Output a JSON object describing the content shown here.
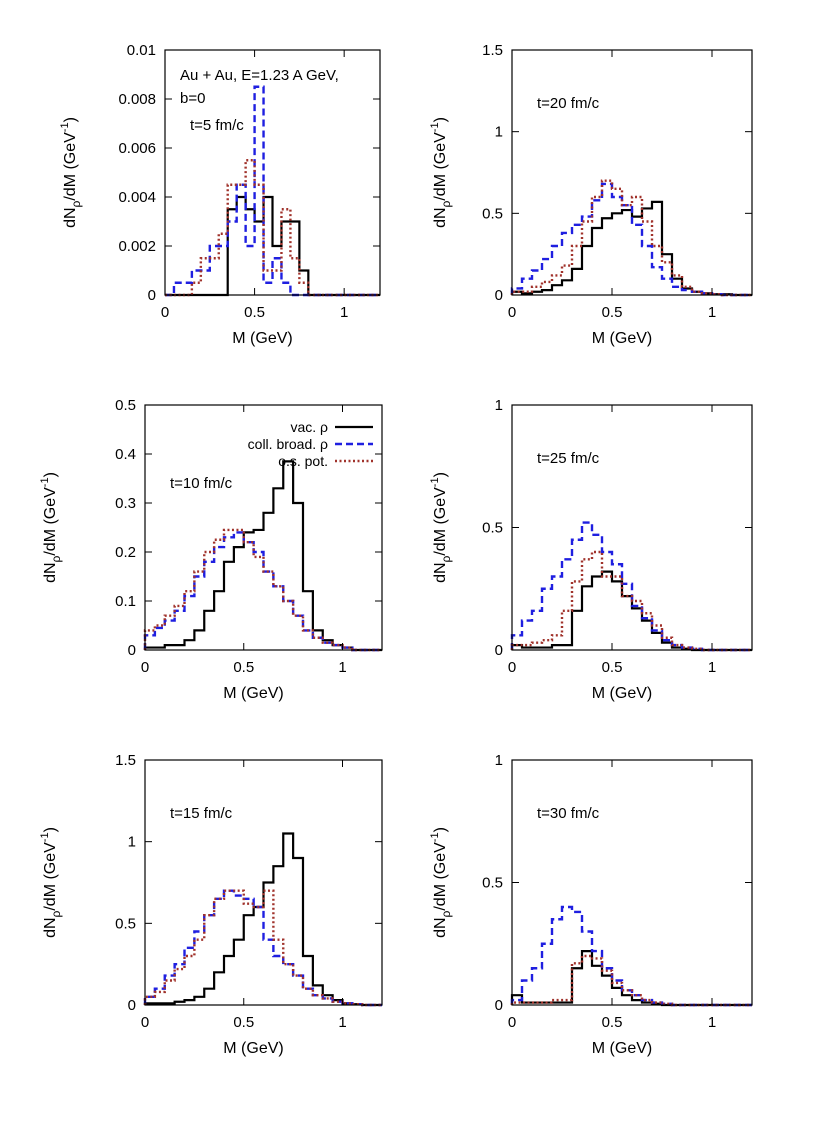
{
  "figure": {
    "header_lines": [
      "Au + Au, E=1.23 A GeV,",
      "b=0"
    ],
    "legend": [
      {
        "label": "vac. ρ",
        "color": "#000000",
        "style": "solid"
      },
      {
        "label": "coll. broad. ρ",
        "color": "#1f1fe0",
        "style": "dashed"
      },
      {
        "label": "o.s. pot.",
        "color": "#a0322b",
        "style": "dotted"
      }
    ]
  },
  "chart_data": [
    {
      "type": "line",
      "annotation": "t=5 fm/c",
      "xlabel": "M (GeV)",
      "ylabel": "dN_ρ/dM (GeV^-1)",
      "xlim": [
        0,
        1.2
      ],
      "ylim": [
        0,
        0.01
      ],
      "xticks": [
        "0",
        "0.5",
        "1"
      ],
      "xtick_values": [
        0,
        0.5,
        1
      ],
      "yticks": [
        "0",
        "0.002",
        "0.004",
        "0.006",
        "0.008",
        "0.01"
      ],
      "ytick_values": [
        0,
        0.002,
        0.004,
        0.006,
        0.008,
        0.01
      ],
      "bin_edges": [
        0,
        0.05,
        0.1,
        0.15,
        0.2,
        0.25,
        0.3,
        0.35,
        0.4,
        0.45,
        0.5,
        0.55,
        0.6,
        0.65,
        0.7,
        0.75,
        0.8,
        0.85,
        0.9,
        0.95,
        1.0,
        1.05,
        1.1,
        1.15,
        1.2
      ],
      "series": [
        {
          "name": "vac. ρ",
          "values": [
            0,
            0,
            0,
            0,
            0,
            0,
            0,
            0.0035,
            0.004,
            0.0035,
            0.003,
            0.004,
            0.002,
            0.003,
            0.003,
            0.001,
            0,
            0,
            0,
            0,
            0,
            0,
            0,
            0
          ]
        },
        {
          "name": "coll. broad. ρ",
          "values": [
            0,
            0.0005,
            0.0005,
            0.001,
            0.001,
            0.002,
            0.002,
            0.003,
            0.0045,
            0.002,
            0.0085,
            0.0005,
            0.0015,
            0.0005,
            0,
            0,
            0,
            0,
            0,
            0,
            0,
            0,
            0,
            0
          ]
        },
        {
          "name": "o.s. pot.",
          "values": [
            0,
            0,
            0,
            0.0005,
            0.0015,
            0.0015,
            0.0025,
            0.0045,
            0.0045,
            0.0055,
            0.0045,
            0.001,
            0.001,
            0.0035,
            0.0015,
            0.0005,
            0,
            0,
            0,
            0,
            0,
            0,
            0,
            0
          ]
        }
      ]
    },
    {
      "type": "line",
      "annotation": "t=20 fm/c",
      "xlabel": "M (GeV)",
      "ylabel": "dN_ρ/dM (GeV^-1)",
      "xlim": [
        0,
        1.2
      ],
      "ylim": [
        0,
        1.5
      ],
      "xticks": [
        "0",
        "0.5",
        "1"
      ],
      "xtick_values": [
        0,
        0.5,
        1
      ],
      "yticks": [
        "0",
        "0.5",
        "1",
        "1.5"
      ],
      "ytick_values": [
        0,
        0.5,
        1,
        1.5
      ],
      "bin_edges": [
        0,
        0.05,
        0.1,
        0.15,
        0.2,
        0.25,
        0.3,
        0.35,
        0.4,
        0.45,
        0.5,
        0.55,
        0.6,
        0.65,
        0.7,
        0.75,
        0.8,
        0.85,
        0.9,
        0.95,
        1.0,
        1.05,
        1.1,
        1.15,
        1.2
      ],
      "series": [
        {
          "name": "vac. ρ",
          "values": [
            0.02,
            0.01,
            0.02,
            0.03,
            0.06,
            0.09,
            0.16,
            0.3,
            0.41,
            0.47,
            0.5,
            0.52,
            0.48,
            0.53,
            0.57,
            0.25,
            0.1,
            0.04,
            0.02,
            0.01,
            0.005,
            0.005,
            0,
            0
          ]
        },
        {
          "name": "coll. broad. ρ",
          "values": [
            0.04,
            0.1,
            0.15,
            0.22,
            0.3,
            0.38,
            0.43,
            0.48,
            0.58,
            0.68,
            0.6,
            0.55,
            0.43,
            0.3,
            0.17,
            0.1,
            0.05,
            0.03,
            0.02,
            0.01,
            0.005,
            0,
            0,
            0
          ]
        },
        {
          "name": "o.s. pot.",
          "values": [
            0.02,
            0.02,
            0.05,
            0.08,
            0.12,
            0.18,
            0.3,
            0.45,
            0.6,
            0.7,
            0.65,
            0.55,
            0.6,
            0.45,
            0.3,
            0.2,
            0.12,
            0.05,
            0.02,
            0.01,
            0.005,
            0,
            0,
            0
          ]
        }
      ]
    },
    {
      "type": "line",
      "annotation": "t=10 fm/c",
      "xlabel": "M (GeV)",
      "ylabel": "dN_ρ/dM (GeV^-1)",
      "xlim": [
        0,
        1.2
      ],
      "ylim": [
        0,
        0.5
      ],
      "xticks": [
        "0",
        "0.5",
        "1"
      ],
      "xtick_values": [
        0,
        0.5,
        1
      ],
      "yticks": [
        "0",
        "0.1",
        "0.2",
        "0.3",
        "0.4",
        "0.5"
      ],
      "ytick_values": [
        0,
        0.1,
        0.2,
        0.3,
        0.4,
        0.5
      ],
      "bin_edges": [
        0,
        0.05,
        0.1,
        0.15,
        0.2,
        0.25,
        0.3,
        0.35,
        0.4,
        0.45,
        0.5,
        0.55,
        0.6,
        0.65,
        0.7,
        0.75,
        0.8,
        0.85,
        0.9,
        0.95,
        1.0,
        1.05,
        1.1,
        1.15,
        1.2
      ],
      "series": [
        {
          "name": "vac. ρ",
          "values": [
            0.005,
            0.005,
            0.01,
            0.01,
            0.02,
            0.04,
            0.08,
            0.12,
            0.18,
            0.21,
            0.24,
            0.245,
            0.28,
            0.33,
            0.385,
            0.3,
            0.12,
            0.04,
            0.02,
            0.01,
            0.005,
            0,
            0,
            0
          ]
        },
        {
          "name": "coll. broad. ρ",
          "values": [
            0.03,
            0.045,
            0.06,
            0.08,
            0.11,
            0.15,
            0.18,
            0.21,
            0.23,
            0.24,
            0.22,
            0.2,
            0.16,
            0.13,
            0.1,
            0.07,
            0.04,
            0.025,
            0.015,
            0.01,
            0.005,
            0,
            0,
            0
          ]
        },
        {
          "name": "o.s. pot.",
          "values": [
            0.04,
            0.05,
            0.07,
            0.09,
            0.12,
            0.16,
            0.2,
            0.225,
            0.245,
            0.245,
            0.22,
            0.19,
            0.16,
            0.13,
            0.1,
            0.07,
            0.04,
            0.025,
            0.015,
            0.01,
            0.005,
            0,
            0,
            0
          ]
        }
      ]
    },
    {
      "type": "line",
      "annotation": "t=25 fm/c",
      "xlabel": "M (GeV)",
      "ylabel": "dN_ρ/dM (GeV^-1)",
      "xlim": [
        0,
        1.2
      ],
      "ylim": [
        0,
        1
      ],
      "xticks": [
        "0",
        "0.5",
        "1"
      ],
      "xtick_values": [
        0,
        0.5,
        1
      ],
      "yticks": [
        "0",
        "0.5",
        "1"
      ],
      "ytick_values": [
        0,
        0.5,
        1
      ],
      "bin_edges": [
        0,
        0.05,
        0.1,
        0.15,
        0.2,
        0.25,
        0.3,
        0.35,
        0.4,
        0.45,
        0.5,
        0.55,
        0.6,
        0.65,
        0.7,
        0.75,
        0.8,
        0.85,
        0.9,
        0.95,
        1.0,
        1.05,
        1.1,
        1.15,
        1.2
      ],
      "series": [
        {
          "name": "vac. ρ",
          "values": [
            0.02,
            0.01,
            0.01,
            0.01,
            0.02,
            0.02,
            0.16,
            0.26,
            0.3,
            0.32,
            0.28,
            0.22,
            0.17,
            0.12,
            0.07,
            0.03,
            0.01,
            0.005,
            0,
            0,
            0,
            0,
            0,
            0
          ]
        },
        {
          "name": "coll. broad. ρ",
          "values": [
            0.06,
            0.12,
            0.16,
            0.25,
            0.3,
            0.37,
            0.45,
            0.52,
            0.47,
            0.4,
            0.35,
            0.27,
            0.18,
            0.13,
            0.08,
            0.04,
            0.02,
            0.01,
            0.005,
            0,
            0,
            0,
            0,
            0
          ]
        },
        {
          "name": "o.s. pot.",
          "values": [
            0.02,
            0.02,
            0.03,
            0.04,
            0.06,
            0.16,
            0.28,
            0.37,
            0.4,
            0.3,
            0.3,
            0.22,
            0.2,
            0.15,
            0.1,
            0.05,
            0.02,
            0.01,
            0.005,
            0,
            0,
            0,
            0,
            0
          ]
        }
      ]
    },
    {
      "type": "line",
      "annotation": "t=15 fm/c",
      "xlabel": "M (GeV)",
      "ylabel": "dN_ρ/dM (GeV^-1)",
      "xlim": [
        0,
        1.2
      ],
      "ylim": [
        0,
        1.5
      ],
      "xticks": [
        "0",
        "0.5",
        "1"
      ],
      "xtick_values": [
        0,
        0.5,
        1
      ],
      "yticks": [
        "0",
        "0.5",
        "1",
        "1.5"
      ],
      "ytick_values": [
        0,
        0.5,
        1,
        1.5
      ],
      "bin_edges": [
        0,
        0.05,
        0.1,
        0.15,
        0.2,
        0.25,
        0.3,
        0.35,
        0.4,
        0.45,
        0.5,
        0.55,
        0.6,
        0.65,
        0.7,
        0.75,
        0.8,
        0.85,
        0.9,
        0.95,
        1.0,
        1.05,
        1.1,
        1.15,
        1.2
      ],
      "series": [
        {
          "name": "vac. ρ",
          "values": [
            0.01,
            0.01,
            0.01,
            0.02,
            0.03,
            0.05,
            0.1,
            0.2,
            0.3,
            0.4,
            0.55,
            0.6,
            0.75,
            0.85,
            1.05,
            0.9,
            0.3,
            0.12,
            0.06,
            0.03,
            0.01,
            0.005,
            0,
            0
          ]
        },
        {
          "name": "coll. broad. ρ",
          "values": [
            0.05,
            0.1,
            0.18,
            0.25,
            0.35,
            0.45,
            0.55,
            0.65,
            0.7,
            0.67,
            0.65,
            0.6,
            0.4,
            0.3,
            0.25,
            0.18,
            0.1,
            0.06,
            0.04,
            0.02,
            0.01,
            0.005,
            0,
            0
          ]
        },
        {
          "name": "o.s. pot.",
          "values": [
            0.05,
            0.08,
            0.15,
            0.22,
            0.3,
            0.4,
            0.55,
            0.65,
            0.7,
            0.7,
            0.62,
            0.6,
            0.7,
            0.4,
            0.25,
            0.18,
            0.1,
            0.06,
            0.04,
            0.02,
            0.01,
            0.005,
            0,
            0
          ]
        }
      ]
    },
    {
      "type": "line",
      "annotation": "t=30 fm/c",
      "xlabel": "M (GeV)",
      "ylabel": "dN_ρ/dM (GeV^-1)",
      "xlim": [
        0,
        1.2
      ],
      "ylim": [
        0,
        1
      ],
      "xticks": [
        "0",
        "0.5",
        "1"
      ],
      "xtick_values": [
        0,
        0.5,
        1
      ],
      "yticks": [
        "0",
        "0.5",
        "1"
      ],
      "ytick_values": [
        0,
        0.5,
        1
      ],
      "bin_edges": [
        0,
        0.05,
        0.1,
        0.15,
        0.2,
        0.25,
        0.3,
        0.35,
        0.4,
        0.45,
        0.5,
        0.55,
        0.6,
        0.65,
        0.7,
        0.75,
        0.8,
        0.85,
        0.9,
        0.95,
        1.0,
        1.05,
        1.1,
        1.15,
        1.2
      ],
      "series": [
        {
          "name": "vac. ρ",
          "values": [
            0.04,
            0.01,
            0.01,
            0.01,
            0.01,
            0.01,
            0.15,
            0.22,
            0.16,
            0.12,
            0.07,
            0.04,
            0.02,
            0.01,
            0.005,
            0,
            0,
            0,
            0,
            0,
            0,
            0,
            0,
            0
          ]
        },
        {
          "name": "coll. broad. ρ",
          "values": [
            0.02,
            0.1,
            0.15,
            0.25,
            0.35,
            0.4,
            0.38,
            0.3,
            0.22,
            0.15,
            0.1,
            0.06,
            0.04,
            0.02,
            0.01,
            0.005,
            0,
            0,
            0,
            0,
            0,
            0,
            0,
            0
          ]
        },
        {
          "name": "o.s. pot.",
          "values": [
            0.01,
            0.01,
            0.01,
            0.01,
            0.02,
            0.02,
            0.17,
            0.2,
            0.19,
            0.14,
            0.09,
            0.06,
            0.04,
            0.02,
            0.01,
            0.005,
            0,
            0,
            0,
            0,
            0,
            0,
            0,
            0
          ]
        }
      ]
    }
  ]
}
